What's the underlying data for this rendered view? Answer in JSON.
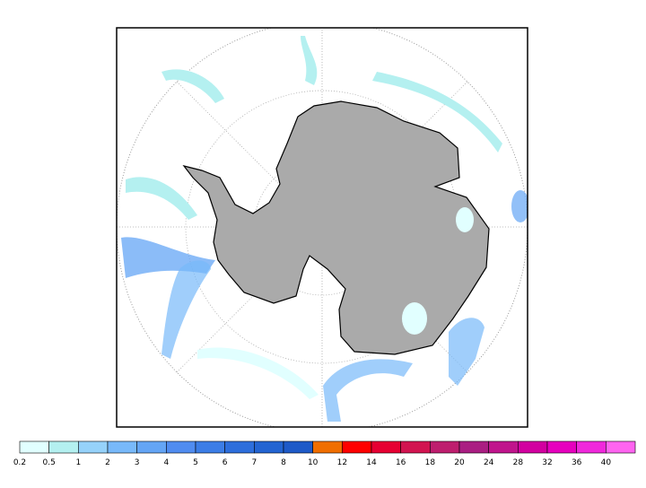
{
  "colorbar": {
    "labels": [
      0.2,
      0.5,
      1,
      2,
      3,
      4,
      5,
      6,
      7,
      8,
      10,
      12,
      14,
      16,
      18,
      20,
      24,
      28,
      32,
      36,
      40
    ],
    "colors": [
      "#e1ffff",
      "#b4f0f0",
      "#96d2fa",
      "#78b9fa",
      "#64a5f5",
      "#508cf0",
      "#3c7de6",
      "#2d6edc",
      "#2364d2",
      "#1e5ac8",
      "#f06e00",
      "#ff0000",
      "#e60032",
      "#d21450",
      "#be1e6e",
      "#aa1e82",
      "#c0148c",
      "#d200a0",
      "#e600be",
      "#f028dc",
      "#ff64f0"
    ]
  }
}
